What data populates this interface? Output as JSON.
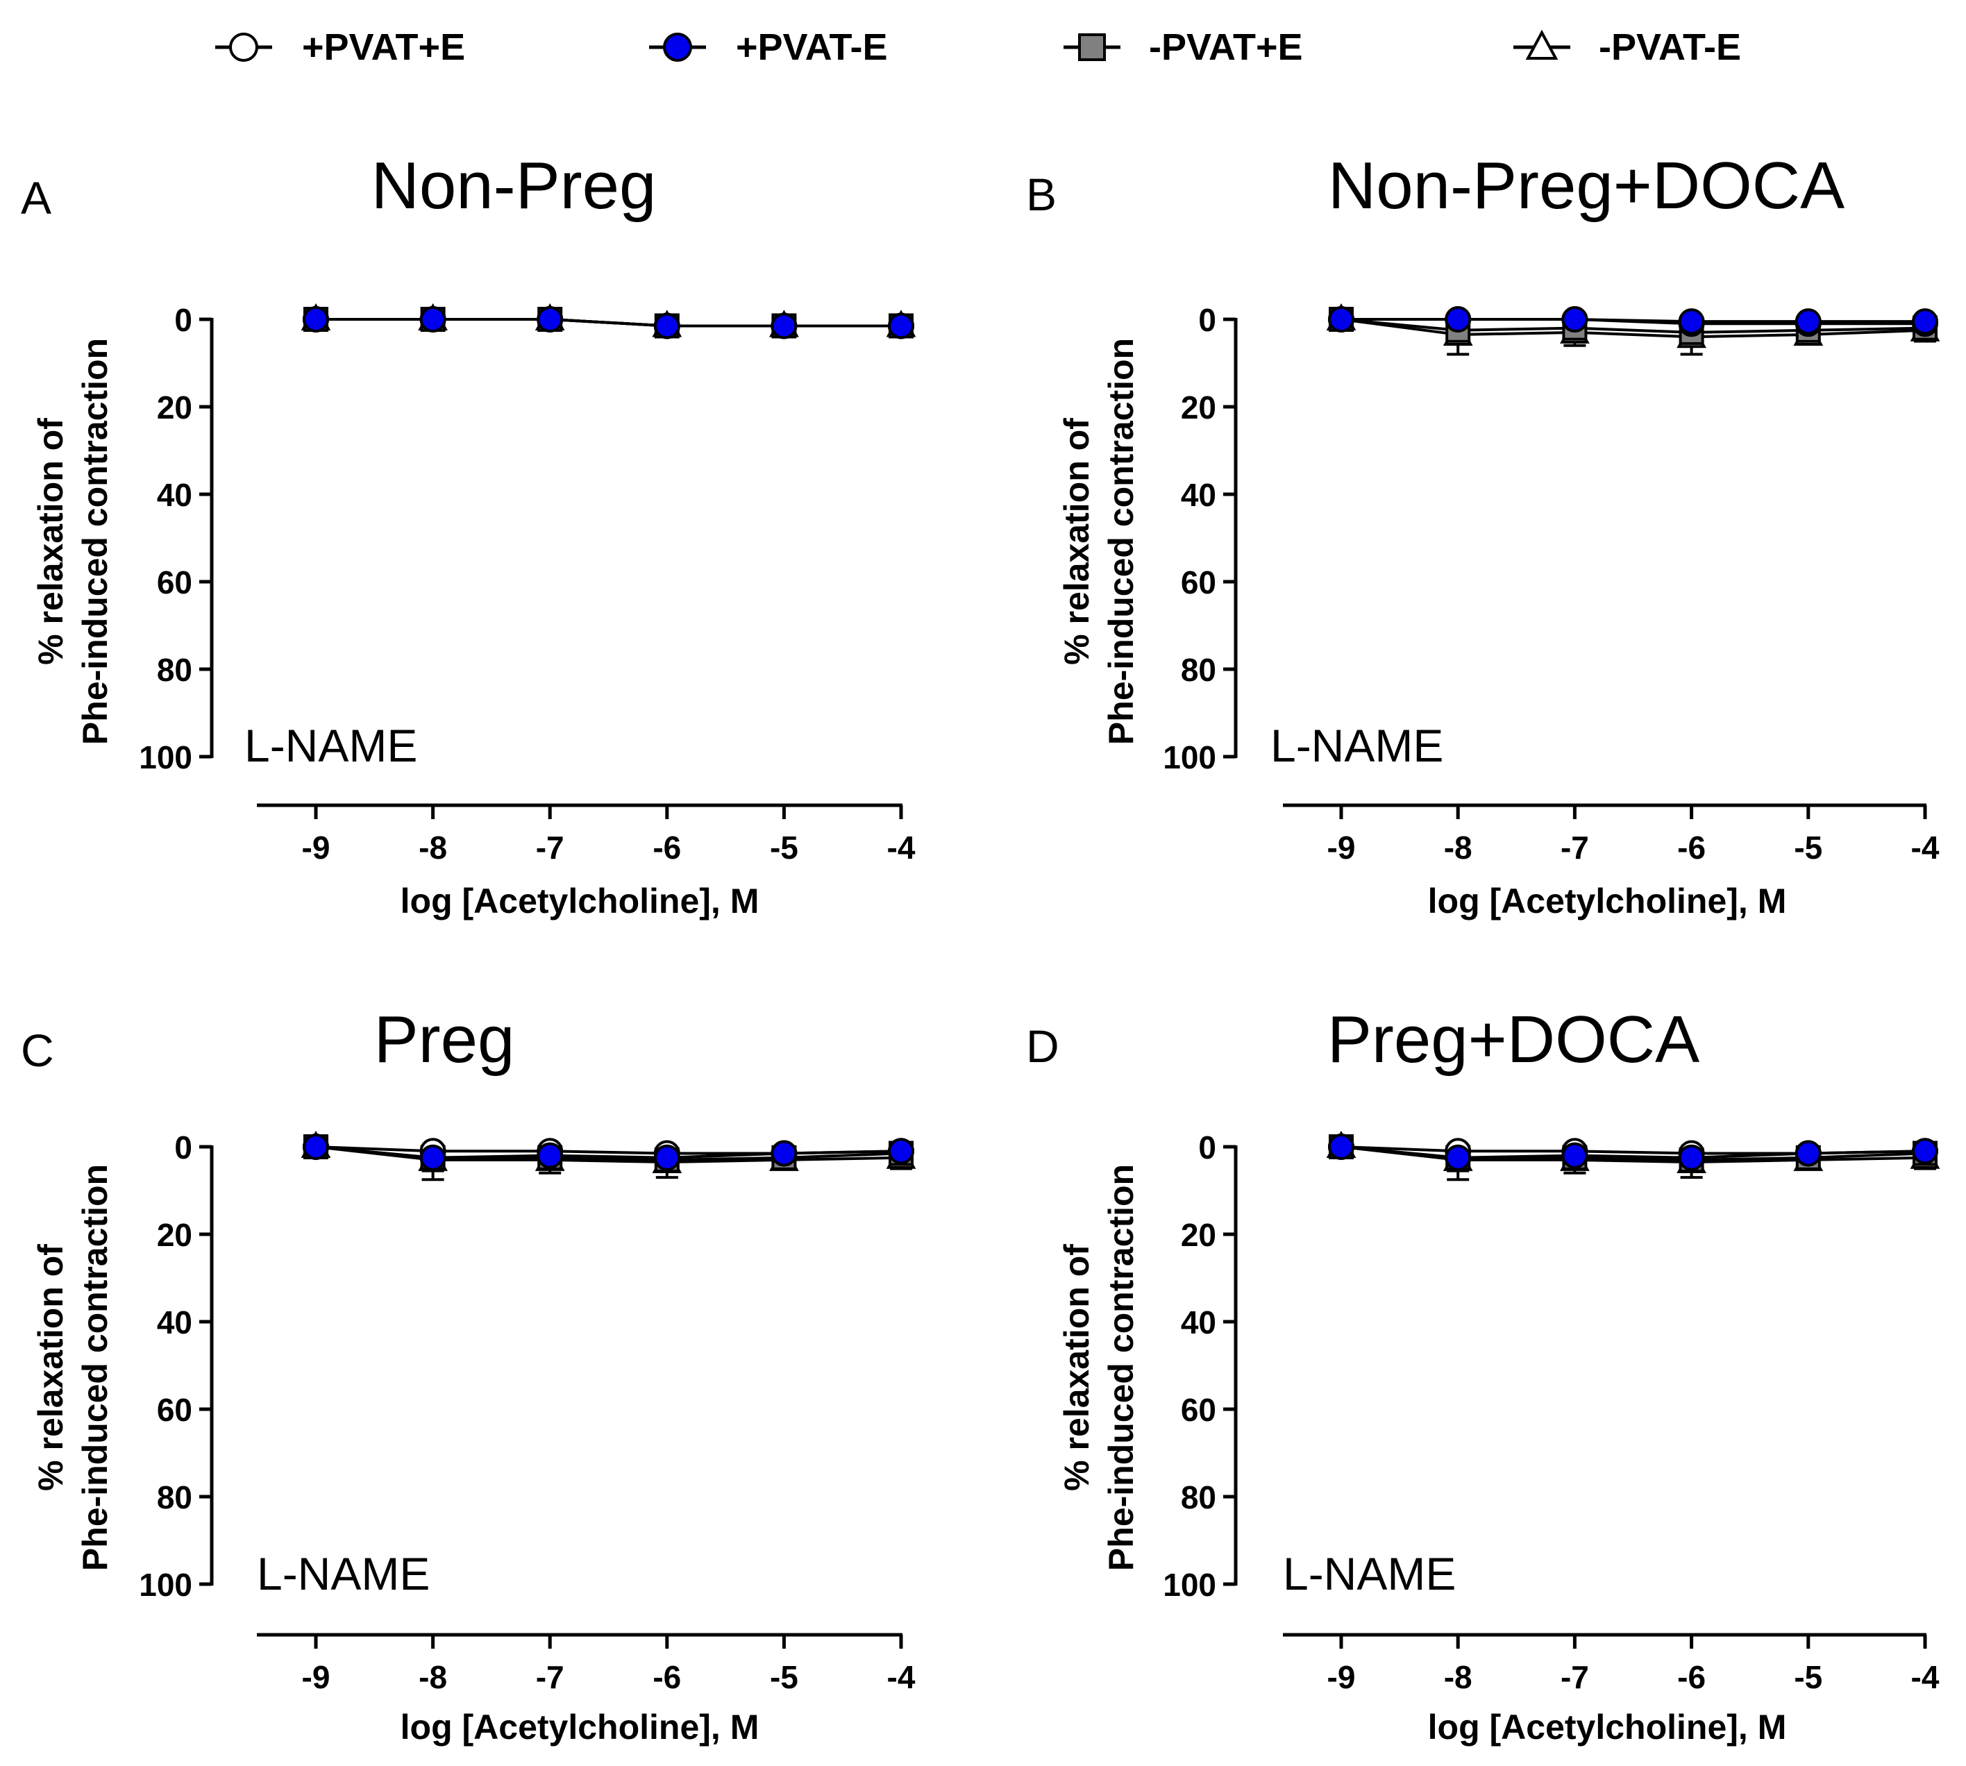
{
  "legend": [
    {
      "name": "+PVAT+E",
      "marker": "circle",
      "fill": "#ffffff"
    },
    {
      "name": "+PVAT-E",
      "marker": "circle",
      "fill": "#0000ee"
    },
    {
      "name": "-PVAT+E",
      "marker": "square",
      "fill": "#808080"
    },
    {
      "name": "-PVAT-E",
      "marker": "triangle",
      "fill": "#ffffff"
    }
  ],
  "colors": {
    "blue_marker": "#0000ee",
    "gray_marker": "#808080",
    "line": "#000000"
  },
  "chart_data": [
    {
      "panel_letter": "A",
      "title": "Non-Preg",
      "annotation": "L-NAME",
      "type": "line",
      "xlabel": "log [Acetylcholine], M",
      "ylabel_line1": "% relaxation of",
      "ylabel_line2": "Phe-induced contraction",
      "x": [
        -9,
        -8,
        -7,
        -6,
        -5,
        -4
      ],
      "x_tick_labels": [
        "-9",
        "-8",
        "-7",
        "-6",
        "-5",
        "-4"
      ],
      "y_tick_values": [
        0,
        20,
        40,
        60,
        80,
        100
      ],
      "y_tick_labels": [
        "0",
        "20",
        "40",
        "60",
        "80",
        "100"
      ],
      "ylim": [
        0,
        100
      ],
      "y_inverted": true,
      "series": [
        {
          "name": "-PVAT-E",
          "values": [
            0,
            0,
            0,
            1.5,
            1.5,
            1.5
          ],
          "err": [
            0,
            0,
            0,
            0,
            0,
            0
          ]
        },
        {
          "name": "+PVAT+E",
          "values": [
            0,
            0,
            0,
            1.5,
            1.5,
            1.5
          ],
          "err": [
            0,
            0,
            0,
            0,
            0,
            0
          ]
        },
        {
          "name": "-PVAT+E",
          "values": [
            0,
            0,
            0,
            1.5,
            1.5,
            1.5
          ],
          "err": [
            0,
            0,
            0,
            0,
            0,
            0
          ]
        },
        {
          "name": "+PVAT-E",
          "values": [
            0,
            0,
            0,
            1.5,
            1.5,
            1.5
          ],
          "err": [
            0,
            0,
            0,
            0,
            0,
            0
          ]
        }
      ]
    },
    {
      "panel_letter": "B",
      "title": "Non-Preg+DOCA",
      "annotation": "L-NAME",
      "type": "line",
      "xlabel": "log [Acetylcholine], M",
      "ylabel_line1": "% relaxation of",
      "ylabel_line2": "Phe-induced contraction",
      "x": [
        -9,
        -8,
        -7,
        -6,
        -5,
        -4
      ],
      "x_tick_labels": [
        "-9",
        "-8",
        "-7",
        "-6",
        "-5",
        "-4"
      ],
      "y_tick_values": [
        0,
        20,
        40,
        60,
        80,
        100
      ],
      "y_tick_labels": [
        "0",
        "20",
        "40",
        "60",
        "80",
        "100"
      ],
      "ylim": [
        0,
        100
      ],
      "y_inverted": true,
      "series": [
        {
          "name": "-PVAT-E",
          "values": [
            0,
            3.5,
            3,
            4,
            3.5,
            2.5
          ],
          "err": [
            0,
            4.5,
            3,
            4,
            2,
            2.5
          ]
        },
        {
          "name": "-PVAT+E",
          "values": [
            0,
            2.5,
            2,
            3,
            2.5,
            2
          ],
          "err": [
            0,
            3,
            2.5,
            3,
            1.5,
            1.5
          ]
        },
        {
          "name": "+PVAT+E",
          "values": [
            0,
            0,
            0,
            1,
            1,
            1
          ],
          "err": [
            0,
            0,
            0,
            0,
            0,
            0
          ]
        },
        {
          "name": "+PVAT-E",
          "values": [
            0,
            0,
            0,
            0.5,
            0.5,
            0.5
          ],
          "err": [
            0,
            0,
            0,
            0,
            0,
            0
          ]
        }
      ]
    },
    {
      "panel_letter": "C",
      "title": "Preg",
      "annotation": "L-NAME",
      "type": "line",
      "xlabel": "log [Acetylcholine], M",
      "ylabel_line1": "% relaxation of",
      "ylabel_line2": "Phe-induced contraction",
      "x": [
        -9,
        -8,
        -7,
        -6,
        -5,
        -4
      ],
      "x_tick_labels": [
        "-9",
        "-8",
        "-7",
        "-6",
        "-5",
        "-4"
      ],
      "y_tick_values": [
        0,
        20,
        40,
        60,
        80,
        100
      ],
      "y_tick_labels": [
        "0",
        "20",
        "40",
        "60",
        "80",
        "100"
      ],
      "ylim": [
        0,
        100
      ],
      "y_inverted": true,
      "series": [
        {
          "name": "-PVAT-E",
          "values": [
            0,
            3,
            3,
            3.5,
            3,
            2.5
          ],
          "err": [
            0,
            4.5,
            3,
            3.5,
            2,
            2.5
          ]
        },
        {
          "name": "-PVAT+E",
          "values": [
            0,
            2.5,
            2.5,
            3,
            2.5,
            1.5
          ],
          "err": [
            0,
            3,
            2,
            2.5,
            1.5,
            1.5
          ]
        },
        {
          "name": "+PVAT+E",
          "values": [
            0,
            1,
            1,
            1.5,
            1.5,
            1
          ],
          "err": [
            0,
            0,
            0,
            0,
            0,
            0
          ]
        },
        {
          "name": "+PVAT-E",
          "values": [
            0,
            2.5,
            2,
            2.5,
            1.5,
            1
          ],
          "err": [
            0,
            0,
            0,
            0,
            0,
            0
          ]
        }
      ]
    },
    {
      "panel_letter": "D",
      "title": "Preg+DOCA",
      "annotation": "L-NAME",
      "type": "line",
      "xlabel": "log [Acetylcholine], M",
      "ylabel_line1": "% relaxation of",
      "ylabel_line2": "Phe-induced contraction",
      "x": [
        -9,
        -8,
        -7,
        -6,
        -5,
        -4
      ],
      "x_tick_labels": [
        "-9",
        "-8",
        "-7",
        "-6",
        "-5",
        "-4"
      ],
      "y_tick_values": [
        0,
        20,
        40,
        60,
        80,
        100
      ],
      "y_tick_labels": [
        "0",
        "20",
        "40",
        "60",
        "80",
        "100"
      ],
      "ylim": [
        0,
        100
      ],
      "y_inverted": true,
      "series": [
        {
          "name": "-PVAT-E",
          "values": [
            0,
            3,
            3,
            3.5,
            3,
            2.5
          ],
          "err": [
            0,
            4.5,
            3,
            3.5,
            2,
            2.5
          ]
        },
        {
          "name": "-PVAT+E",
          "values": [
            0,
            2.5,
            2.5,
            3,
            2.5,
            1.5
          ],
          "err": [
            0,
            3,
            2,
            2.5,
            1.5,
            1.5
          ]
        },
        {
          "name": "+PVAT+E",
          "values": [
            0,
            1,
            1,
            1.5,
            1.5,
            1
          ],
          "err": [
            0,
            0,
            0,
            0,
            0,
            0
          ]
        },
        {
          "name": "+PVAT-E",
          "values": [
            0,
            2.5,
            2,
            2.5,
            1.5,
            1
          ],
          "err": [
            0,
            0,
            0,
            0,
            0,
            0
          ]
        }
      ]
    }
  ]
}
